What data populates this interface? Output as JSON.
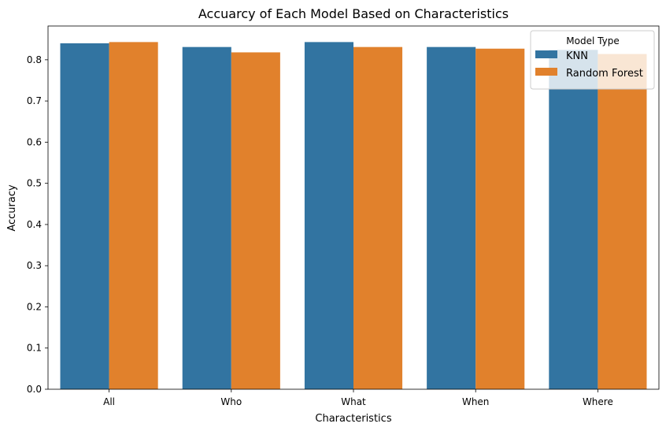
{
  "chart_data": {
    "type": "bar",
    "title": "Accuarcy of Each Model Based on Characteristics",
    "xlabel": "Characteristics",
    "ylabel": "Accuracy",
    "categories": [
      "All",
      "Who",
      "What",
      "When",
      "Where"
    ],
    "series": [
      {
        "name": "KNN",
        "color": "#3274a1",
        "values": [
          0.84,
          0.831,
          0.843,
          0.831,
          0.824
        ]
      },
      {
        "name": "Random Forest",
        "color": "#e1812c",
        "values": [
          0.843,
          0.818,
          0.831,
          0.827,
          0.814
        ]
      }
    ],
    "ylim": [
      0,
      0.882
    ],
    "yticks": [
      "0.0",
      "0.1",
      "0.2",
      "0.3",
      "0.4",
      "0.5",
      "0.6",
      "0.7",
      "0.8"
    ],
    "grid": false,
    "legend": {
      "title": "Model Type",
      "placement": "top-right"
    }
  }
}
